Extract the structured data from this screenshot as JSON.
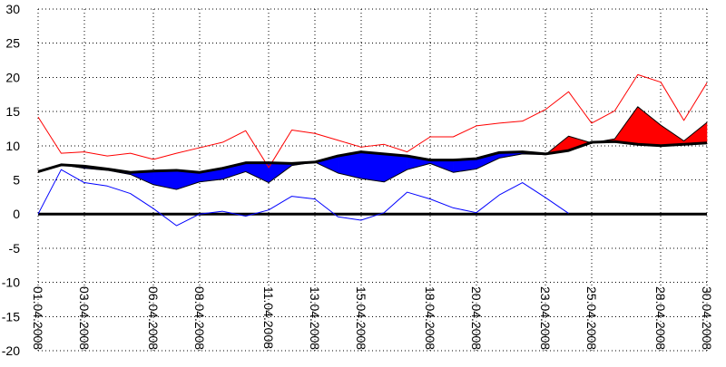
{
  "chart_data": {
    "type": "line",
    "title": "",
    "xlabel": "",
    "ylabel": "",
    "ylim": [
      -20,
      30
    ],
    "xlim": [
      1,
      30
    ],
    "y_ticks": [
      30,
      25,
      20,
      15,
      10,
      5,
      0,
      -5,
      -10,
      -15,
      -20
    ],
    "x_tick_labels": [
      {
        "x": 1,
        "label": "01.04.2008"
      },
      {
        "x": 3,
        "label": "03.04.2008"
      },
      {
        "x": 6,
        "label": "06.04.2008"
      },
      {
        "x": 8,
        "label": "08.04.2008"
      },
      {
        "x": 11,
        "label": "11.04.2008"
      },
      {
        "x": 13,
        "label": "13.04.2008"
      },
      {
        "x": 15,
        "label": "15.04.2008"
      },
      {
        "x": 18,
        "label": "18.04.2008"
      },
      {
        "x": 20,
        "label": "20.04.2008"
      },
      {
        "x": 23,
        "label": "23.04.2008"
      },
      {
        "x": 25,
        "label": "25.04.2008"
      },
      {
        "x": 28,
        "label": "28.04.2008"
      },
      {
        "x": 30,
        "label": "30.04.2008"
      }
    ],
    "grid": true,
    "colors": {
      "max_line": "#ff0000",
      "min_line": "#0000ff",
      "above_fill": "#ff0000",
      "below_fill": "#0000ff",
      "reference": "#000000",
      "zero_line": "#000000",
      "grid": "#000000"
    },
    "series": [
      {
        "key": "max",
        "x": [
          1,
          2,
          3,
          4,
          5,
          6,
          7,
          8,
          9,
          10,
          11,
          12,
          13,
          14,
          15,
          16,
          17,
          18,
          19,
          20,
          21,
          22,
          23,
          24,
          25,
          26,
          27,
          28,
          29,
          30
        ],
        "values": [
          14.2,
          8.9,
          9.1,
          8.5,
          8.9,
          8.0,
          8.9,
          9.7,
          10.5,
          12.2,
          6.8,
          12.3,
          11.8,
          10.8,
          9.8,
          10.2,
          9.1,
          11.3,
          11.3,
          12.9,
          13.3,
          13.6,
          15.3,
          17.9,
          13.3,
          15.1,
          20.4,
          19.3,
          13.7,
          19.2
        ]
      },
      {
        "key": "min",
        "x": [
          1,
          2,
          3,
          4,
          5,
          6,
          7,
          8,
          9,
          10,
          11,
          12,
          13,
          14,
          15,
          16,
          17,
          18,
          19,
          20,
          21,
          22,
          23,
          24
        ],
        "values": [
          0,
          6.5,
          4.6,
          4.1,
          3.0,
          0.8,
          -1.7,
          0,
          0.4,
          -0.3,
          0.6,
          2.6,
          2.2,
          -0.4,
          -0.9,
          0.2,
          3.2,
          2.2,
          0.9,
          0.2,
          2.8,
          4.6,
          2.4,
          0.1
        ]
      },
      {
        "key": "mean",
        "x": [
          1,
          2,
          3,
          4,
          5,
          6,
          7,
          8,
          9,
          10,
          11,
          12,
          13,
          14,
          15,
          16,
          17,
          18,
          19,
          20,
          21,
          22,
          23,
          24,
          25,
          26,
          27,
          28,
          29,
          30
        ],
        "values": [
          6.3,
          7.2,
          6.7,
          6.4,
          5.8,
          4.3,
          3.6,
          4.7,
          5.1,
          6.2,
          4.6,
          7.1,
          7.6,
          6.0,
          5.2,
          4.7,
          6.5,
          7.4,
          6.1,
          6.6,
          8.2,
          8.8,
          8.7,
          11.4,
          10.4,
          11.0,
          15.7,
          13.0,
          10.7,
          13.4
        ]
      },
      {
        "key": "reference",
        "x": [
          1,
          2,
          3,
          4,
          5,
          6,
          7,
          8,
          9,
          10,
          11,
          12,
          13,
          14,
          15,
          16,
          17,
          18,
          19,
          20,
          21,
          22,
          23,
          24,
          25,
          26,
          27,
          28,
          29,
          30
        ],
        "values": [
          6.2,
          7.2,
          7.0,
          6.6,
          6.1,
          6.3,
          6.4,
          6.1,
          6.7,
          7.5,
          7.5,
          7.4,
          7.6,
          8.5,
          9.1,
          8.8,
          8.5,
          7.9,
          7.9,
          8.1,
          9.0,
          9.1,
          8.8,
          9.3,
          10.5,
          10.6,
          10.2,
          10.0,
          10.2,
          10.4
        ]
      }
    ]
  }
}
